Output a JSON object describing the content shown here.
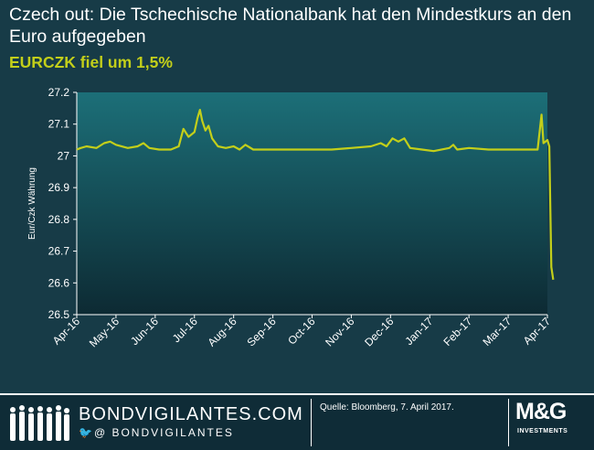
{
  "header": {
    "title": "Czech out: Die Tschechische Nationalbank hat den Mindestkurs an den Euro aufgegeben",
    "subtitle": "EURCZK fiel um 1,5%"
  },
  "footer": {
    "brand": "BONDVIGILANTES.COM",
    "handle": "@ BONDVIGILANTES",
    "source": "Quelle: Bloomberg, 7. April 2017.",
    "logo": "M&G",
    "logo_sub": "INVESTMENTS",
    "twitter_icon": "twitter-bird-icon"
  },
  "colors": {
    "line": "#c3cf1a",
    "plot_top": "#1c6f78",
    "plot_bottom": "#0d2a33",
    "text": "#ffffff"
  },
  "chart_data": {
    "type": "line",
    "title": "",
    "xlabel": "",
    "ylabel": "Eur/Czk Währung",
    "ylim": [
      26.5,
      27.2
    ],
    "yticks": [
      "26.5",
      "26.6",
      "26.7",
      "26.8",
      "26.9",
      "27",
      "27.1",
      "27.2"
    ],
    "xticks": [
      "Apr-16",
      "May-16",
      "Jun-16",
      "Jul-16",
      "Aug-16",
      "Sep-16",
      "Oct-16",
      "Nov-16",
      "Dec-16",
      "Jan-17",
      "Feb-17",
      "Mar-17",
      "Apr-17"
    ],
    "grid": false,
    "series": [
      {
        "name": "",
        "points": [
          [
            0.0,
            27.02
          ],
          [
            0.1,
            27.025
          ],
          [
            0.25,
            27.03
          ],
          [
            0.5,
            27.025
          ],
          [
            0.7,
            27.04
          ],
          [
            0.85,
            27.045
          ],
          [
            1.0,
            27.035
          ],
          [
            1.3,
            27.025
          ],
          [
            1.55,
            27.03
          ],
          [
            1.7,
            27.04
          ],
          [
            1.85,
            27.025
          ],
          [
            2.1,
            27.02
          ],
          [
            2.4,
            27.02
          ],
          [
            2.6,
            27.03
          ],
          [
            2.72,
            27.085
          ],
          [
            2.85,
            27.06
          ],
          [
            3.0,
            27.075
          ],
          [
            3.08,
            27.12
          ],
          [
            3.14,
            27.145
          ],
          [
            3.2,
            27.11
          ],
          [
            3.28,
            27.08
          ],
          [
            3.36,
            27.095
          ],
          [
            3.45,
            27.055
          ],
          [
            3.6,
            27.03
          ],
          [
            3.8,
            27.025
          ],
          [
            4.0,
            27.03
          ],
          [
            4.15,
            27.02
          ],
          [
            4.3,
            27.035
          ],
          [
            4.5,
            27.02
          ],
          [
            5.0,
            27.02
          ],
          [
            5.5,
            27.02
          ],
          [
            6.0,
            27.02
          ],
          [
            6.5,
            27.02
          ],
          [
            7.0,
            27.025
          ],
          [
            7.5,
            27.03
          ],
          [
            7.75,
            27.04
          ],
          [
            7.9,
            27.03
          ],
          [
            8.05,
            27.055
          ],
          [
            8.2,
            27.045
          ],
          [
            8.35,
            27.055
          ],
          [
            8.5,
            27.025
          ],
          [
            8.8,
            27.02
          ],
          [
            9.1,
            27.015
          ],
          [
            9.5,
            27.025
          ],
          [
            9.6,
            27.035
          ],
          [
            9.7,
            27.02
          ],
          [
            10.0,
            27.025
          ],
          [
            10.5,
            27.02
          ],
          [
            11.0,
            27.02
          ],
          [
            11.5,
            27.02
          ],
          [
            11.75,
            27.02
          ],
          [
            11.85,
            27.13
          ],
          [
            11.9,
            27.04
          ],
          [
            12.0,
            27.05
          ],
          [
            12.05,
            27.03
          ],
          [
            12.1,
            26.65
          ],
          [
            12.15,
            26.61
          ]
        ]
      }
    ]
  }
}
